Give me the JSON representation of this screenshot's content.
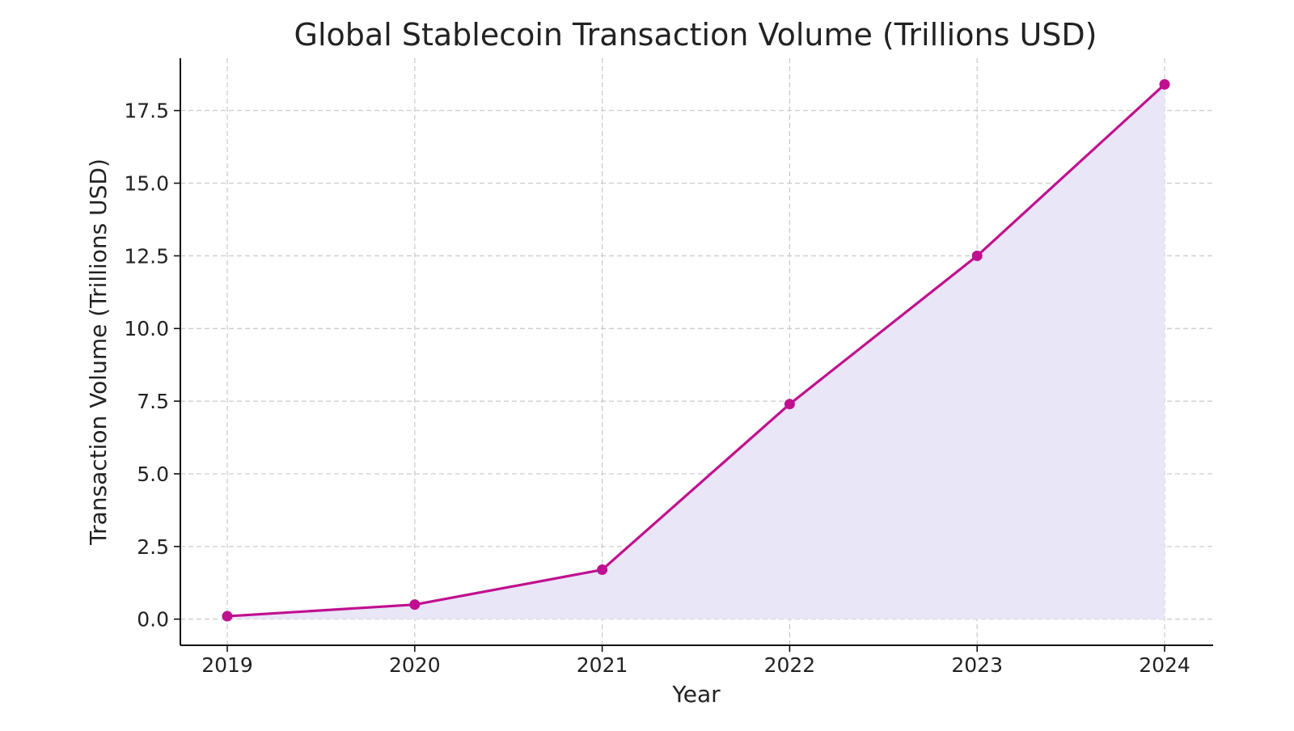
{
  "chart_data": {
    "type": "area",
    "title": "Global Stablecoin Transaction Volume (Trillions USD)",
    "xlabel": "Year",
    "ylabel": "Transaction Volume (Trillions USD)",
    "categories": [
      "2019",
      "2020",
      "2021",
      "2022",
      "2023",
      "2024"
    ],
    "series": [
      {
        "values": [
          0.1,
          0.5,
          1.7,
          7.4,
          12.5,
          18.4
        ]
      }
    ],
    "yticks": [
      "0.0",
      "2.5",
      "5.0",
      "7.5",
      "10.0",
      "12.5",
      "15.0",
      "17.5"
    ],
    "ylim": [
      -0.9,
      19.3
    ],
    "grid": true,
    "markers": true,
    "line_color": "#c0108f",
    "fill_color": "#e9e6f8"
  }
}
